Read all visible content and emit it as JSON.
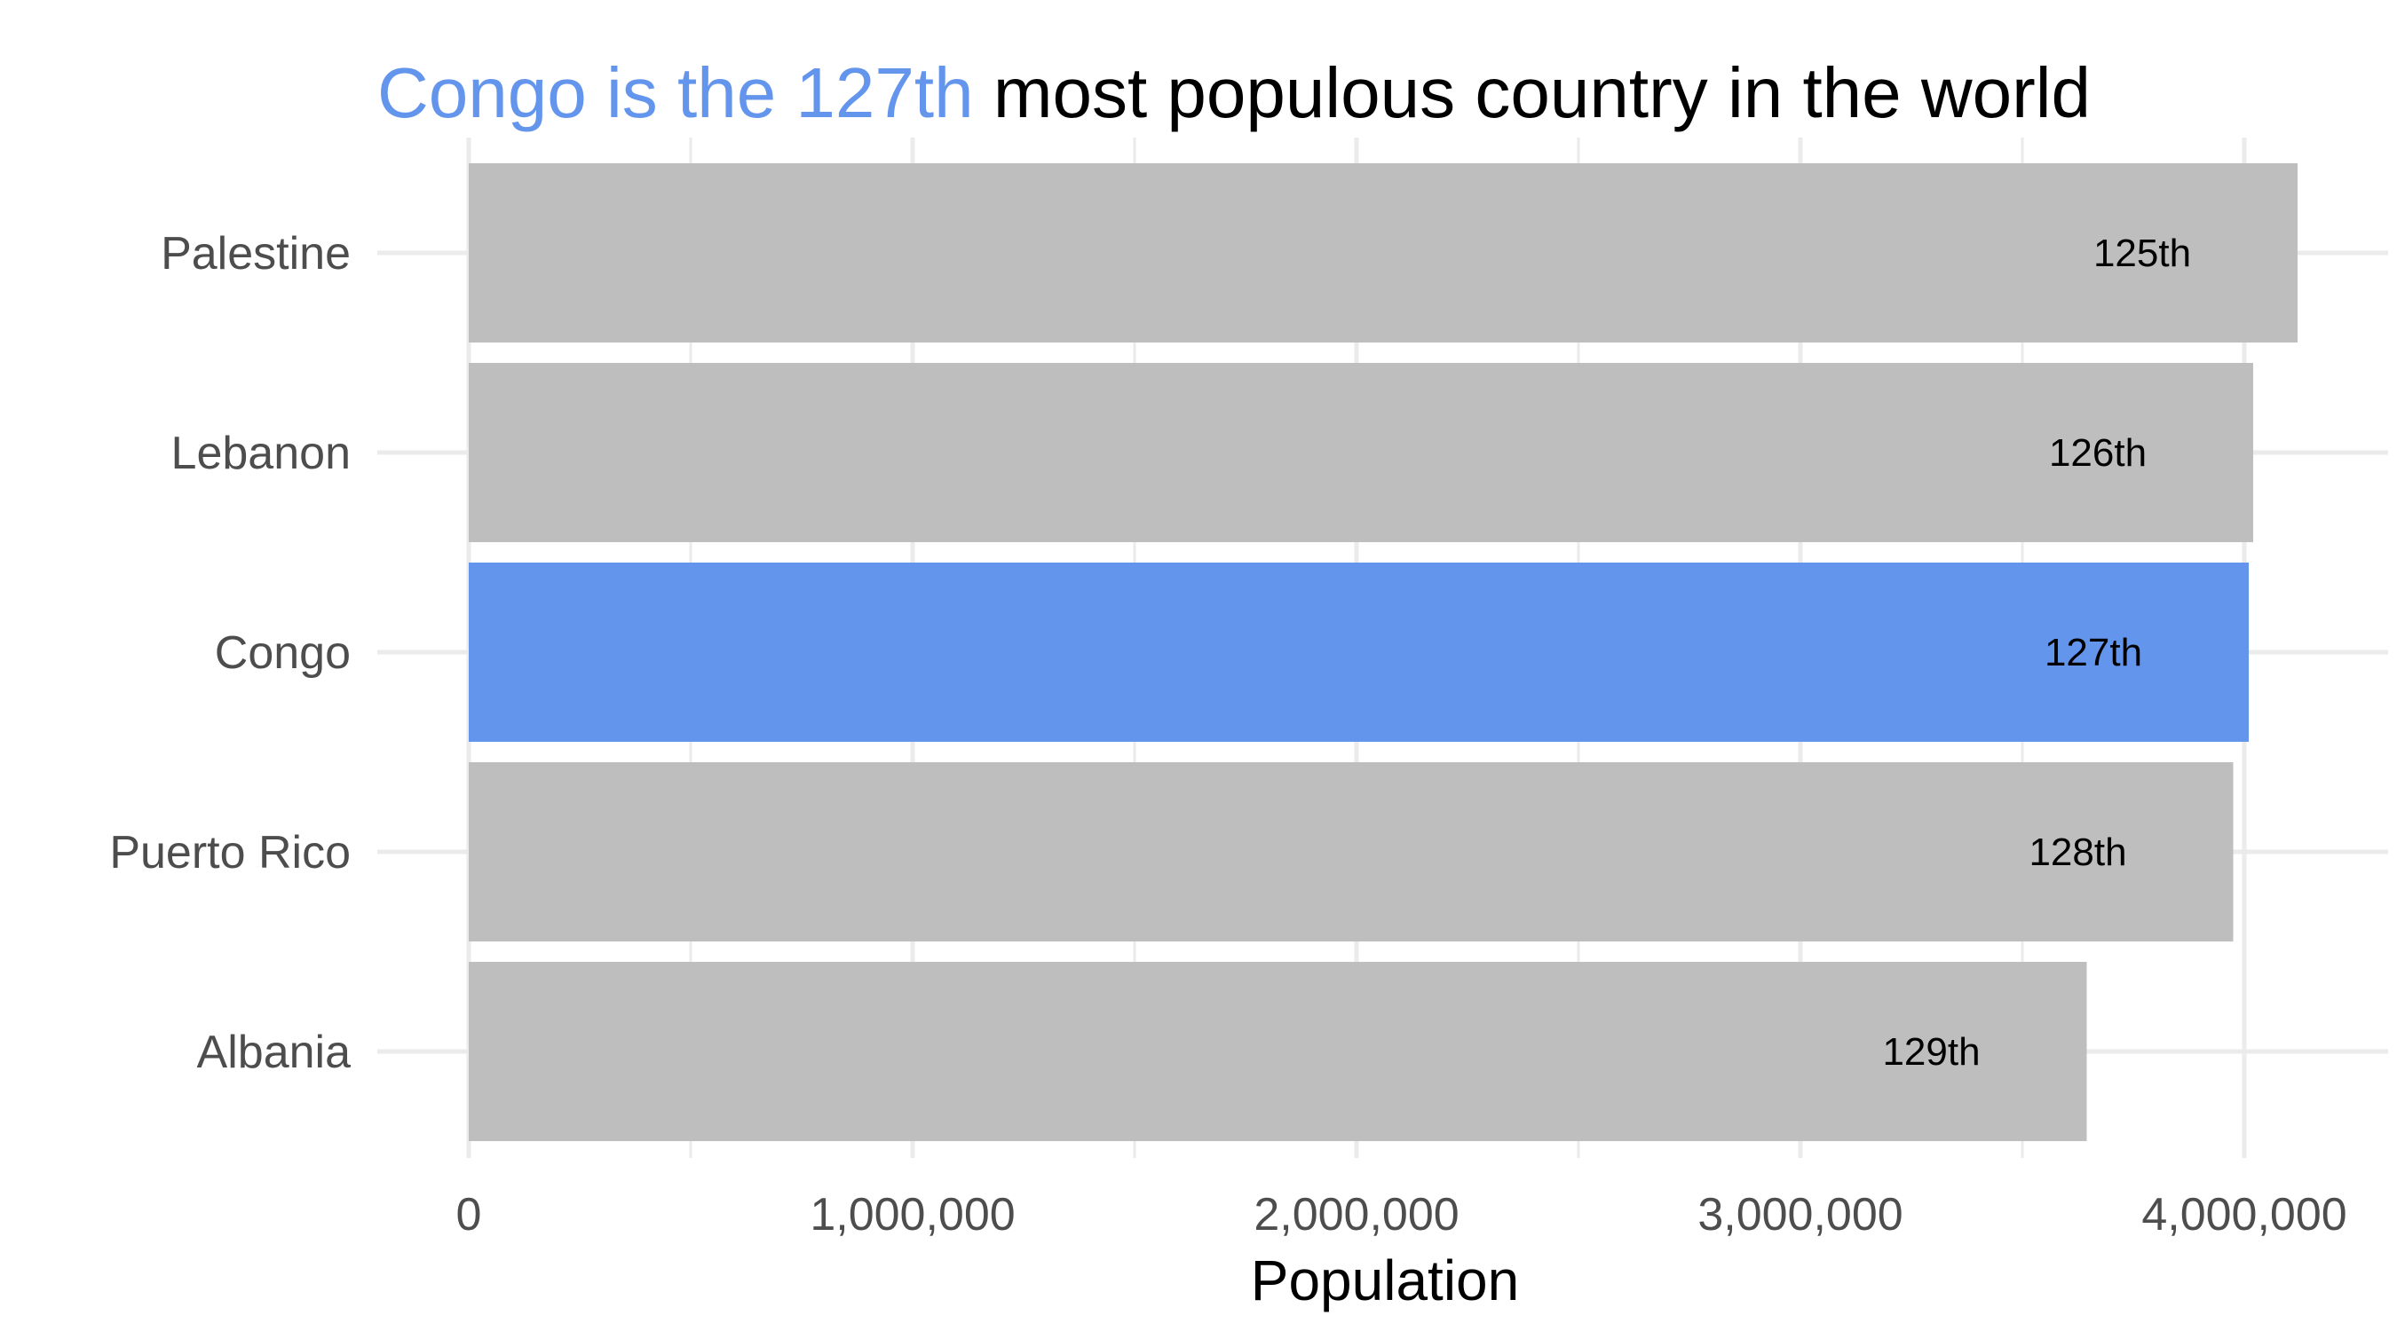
{
  "title": {
    "highlight": "Congo is the 127th",
    "rest": " most populous country in the world",
    "highlight_color": "#6495ED",
    "rest_color": "#000000"
  },
  "colors": {
    "highlight_bar": "#6495ED",
    "default_bar": "#BEBEBE",
    "grid": "#EBEBEB",
    "axis_text": "#4D4D4D",
    "background": "#FFFFFF"
  },
  "chart_data": {
    "type": "bar",
    "orientation": "horizontal",
    "categories": [
      "Palestine",
      "Lebanon",
      "Congo",
      "Puerto Rico",
      "Albania"
    ],
    "values": [
      4120000,
      4020000,
      4010000,
      3975000,
      3645000
    ],
    "rank_labels": [
      "125th",
      "126th",
      "127th",
      "128th",
      "129th"
    ],
    "highlight": "Congo",
    "xlabel": "Population",
    "ylabel": "",
    "xlim": [
      0,
      4220000
    ],
    "x_ticks": [
      0,
      1000000,
      2000000,
      3000000,
      4000000
    ],
    "x_tick_labels": [
      "0",
      "1,000,000",
      "2,000,000",
      "3,000,000",
      "4,000,000"
    ],
    "grid": true,
    "legend": "none"
  }
}
